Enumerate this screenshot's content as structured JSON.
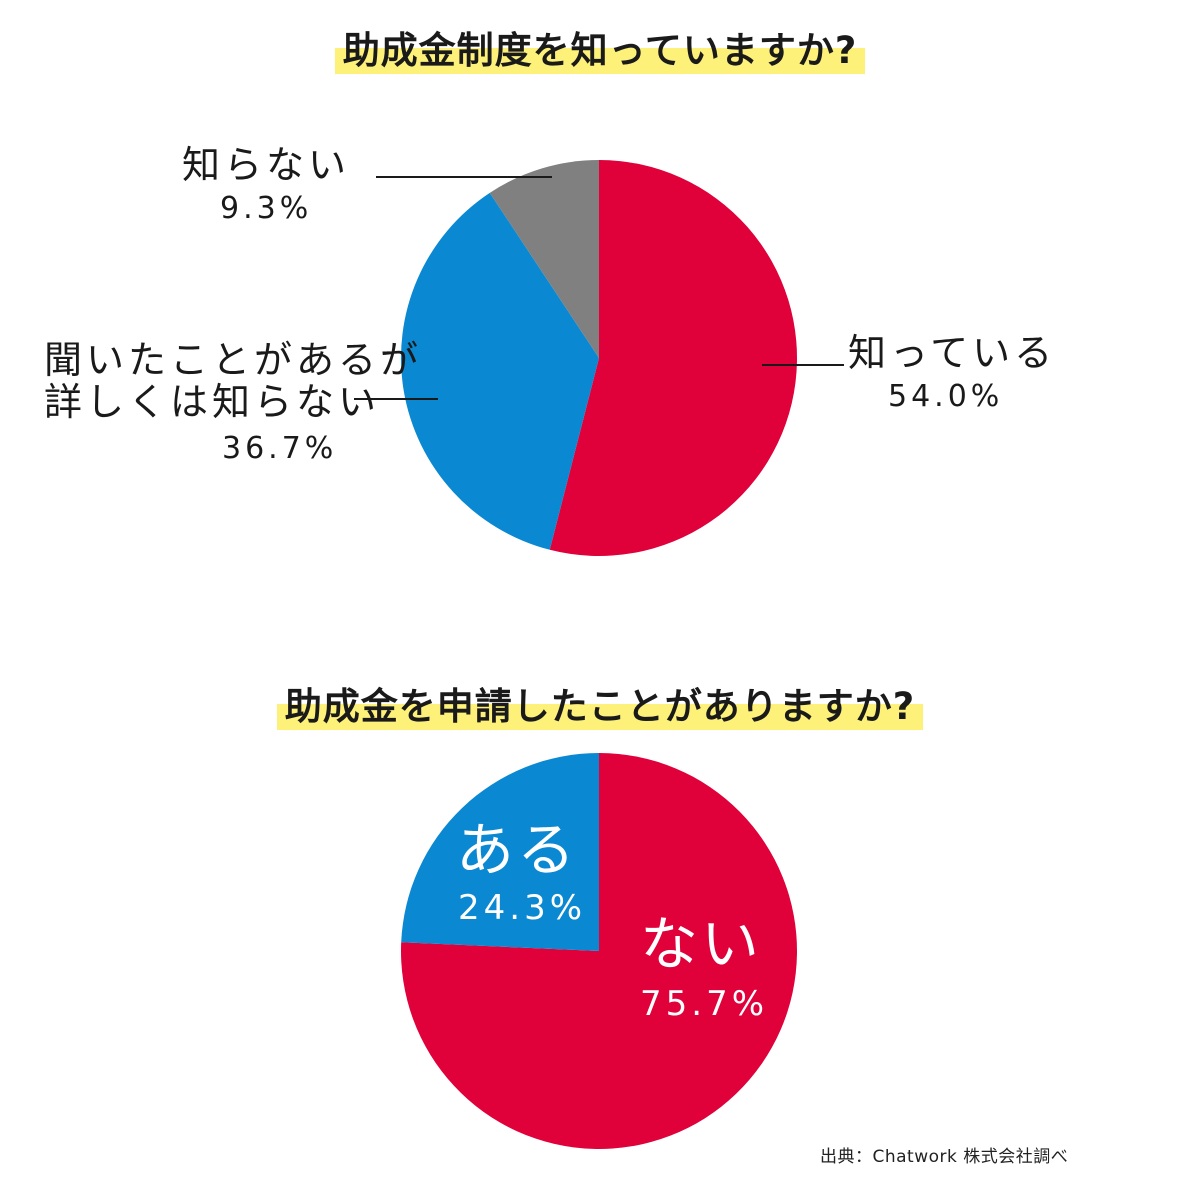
{
  "chart_data": [
    {
      "type": "pie",
      "title": "助成金制度を知っていますか?",
      "slices": [
        {
          "label": "知っている",
          "value": 54.0,
          "value_label": "54.0%",
          "color": "#e0003a"
        },
        {
          "label": "聞いたことがあるが\n詳しくは知らない",
          "label_lines": [
            "聞いたことがあるが",
            "詳しくは知らない"
          ],
          "value": 36.7,
          "value_label": "36.7%",
          "color": "#0a88d2"
        },
        {
          "label": "知らない",
          "value": 9.3,
          "value_label": "9.3%",
          "color": "#808080"
        }
      ]
    },
    {
      "type": "pie",
      "title": "助成金を申請したことがありますか?",
      "slices": [
        {
          "label": "ない",
          "value": 75.7,
          "value_label": "75.7%",
          "color": "#e0003a"
        },
        {
          "label": "ある",
          "value": 24.3,
          "value_label": "24.3%",
          "color": "#0a88d2"
        }
      ]
    }
  ],
  "title_highlight_color": "#fdf17a",
  "source": "出典：Chatwork 株式会社調べ"
}
